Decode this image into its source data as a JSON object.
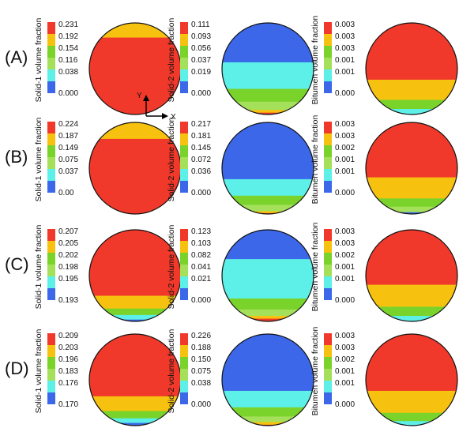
{
  "palette": {
    "red": "#f0392a",
    "orange": "#f7c20f",
    "green": "#79d32b",
    "lightgreen": "#a5e05a",
    "cyan": "#5cf0e8",
    "blue": "#3b67e8",
    "outline": "#111111"
  },
  "axes_indicator": {
    "y_label": "Y",
    "x_label": "X"
  },
  "rows": [
    {
      "label": "(A)",
      "panels": [
        {
          "title": "Solid-1 volume fraction",
          "ticks": [
            "0.231",
            "0.192",
            "0.154",
            "0.116",
            "0.038",
            "0.000"
          ]
        },
        {
          "title": "Solid-2 volume fraction",
          "ticks": [
            "0.111",
            "0.093",
            "0.056",
            "0.037",
            "0.019",
            "0.000"
          ]
        },
        {
          "title": "Bitumen volume fraction",
          "ticks": [
            "0.003",
            "0.003",
            "0.003",
            "0.001",
            "0.001",
            "0.000"
          ]
        }
      ]
    },
    {
      "label": "(B)",
      "panels": [
        {
          "title": "Solid-1 volume fraction",
          "ticks": [
            "0.224",
            "0.187",
            "0.149",
            "0.075",
            "0.037",
            "0.00"
          ]
        },
        {
          "title": "Solid-2 volume fraction",
          "ticks": [
            "0.217",
            "0.181",
            "0.145",
            "0.072",
            "0.036",
            "0.000"
          ]
        },
        {
          "title": "Bitumen volume fraction",
          "ticks": [
            "0.003",
            "0.003",
            "0.002",
            "0.001",
            "0.001",
            "0.000"
          ]
        }
      ]
    },
    {
      "label": "(C)",
      "panels": [
        {
          "title": "Solid-1 volume fraction",
          "ticks": [
            "0.207",
            "0.205",
            "0.202",
            "0.198",
            "0.195",
            "0.193"
          ]
        },
        {
          "title": "Solid-2 volume fraction",
          "ticks": [
            "0.123",
            "0.103",
            "0.082",
            "0.041",
            "0.021",
            "0.000"
          ]
        },
        {
          "title": "Bitumen volume fraction",
          "ticks": [
            "0.003",
            "0.003",
            "0.002",
            "0.001",
            "0.001",
            "0.000"
          ]
        }
      ]
    },
    {
      "label": "(D)",
      "panels": [
        {
          "title": "Solid-1 volume fraction",
          "ticks": [
            "0.209",
            "0.203",
            "0.196",
            "0.183",
            "0.176",
            "0.170"
          ]
        },
        {
          "title": "Solid-2 volume fraction",
          "ticks": [
            "0.226",
            "0.188",
            "0.150",
            "0.075",
            "0.038",
            "0.000"
          ]
        },
        {
          "title": "Bitumen volume fraction",
          "ticks": [
            "0.003",
            "0.003",
            "0.002",
            "0.001",
            "0.001",
            "0.000"
          ]
        }
      ]
    }
  ]
}
